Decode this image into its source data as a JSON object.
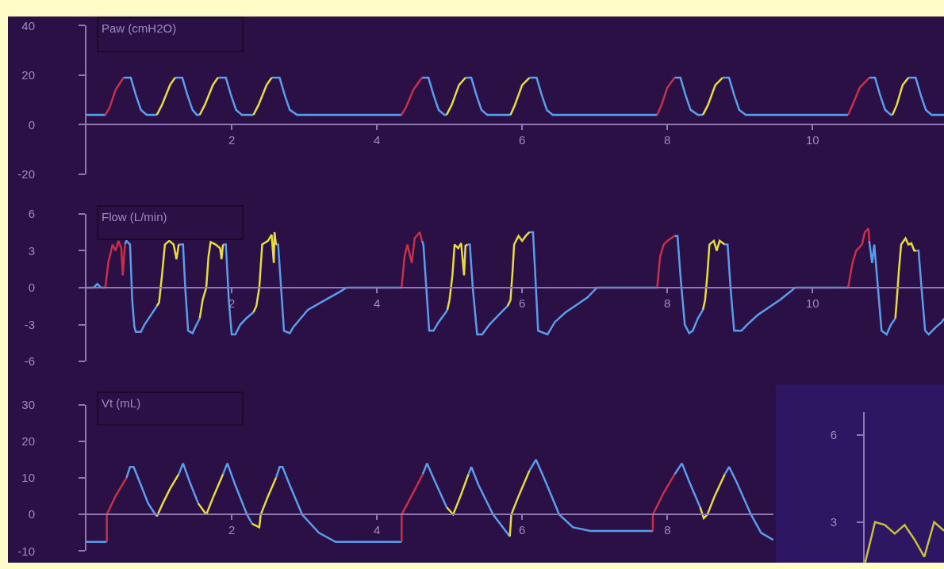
{
  "chart_data": [
    {
      "type": "line",
      "title": "Paw (cmH2O)",
      "xlim": [
        0,
        11.81
      ],
      "xticks": [
        2,
        4,
        6,
        8,
        10
      ],
      "ylim": [
        -20,
        40
      ],
      "yticks": [
        -20,
        0,
        20,
        40
      ],
      "grid": false,
      "series": [
        {
          "color": "#5b9ded",
          "x": [
            0,
            0.26,
            null,
            0.51,
            0.61,
            0.68,
            0.75,
            0.83,
            0.97,
            null,
            1.22,
            1.32,
            1.39,
            1.46,
            1.52,
            1.56,
            null,
            1.81,
            1.92,
            1.99,
            2.06,
            2.14,
            2.3,
            null,
            2.55,
            2.66,
            2.73,
            2.8,
            2.9,
            4.34,
            null,
            4.62,
            4.71,
            4.78,
            4.85,
            4.93,
            4.96,
            null,
            5.22,
            5.3,
            5.37,
            5.44,
            5.52,
            5.84,
            null,
            6.1,
            6.2,
            6.27,
            6.34,
            6.42,
            7.86,
            null,
            8.1,
            8.18,
            8.25,
            8.32,
            8.42,
            8.49,
            null,
            8.76,
            8.85,
            8.92,
            8.99,
            9.08,
            10.49,
            null,
            10.78,
            10.86,
            10.93,
            11.0,
            11.08,
            11.1,
            null,
            11.32,
            11.42,
            11.49,
            11.56,
            11.64,
            11.81
          ],
          "values": [
            4,
            4,
            null,
            19,
            19,
            12,
            6,
            4,
            4,
            null,
            19,
            19,
            12,
            6,
            4,
            4,
            null,
            19,
            19,
            12,
            6,
            4,
            4,
            null,
            19,
            19,
            12,
            6,
            4,
            4,
            null,
            19,
            19,
            12,
            6,
            4,
            4,
            null,
            19,
            19,
            12,
            6,
            4,
            4,
            null,
            19,
            19,
            12,
            6,
            4,
            4,
            null,
            19,
            19,
            12,
            6,
            4,
            4,
            null,
            19,
            19,
            12,
            6,
            4,
            4,
            null,
            19,
            19,
            12,
            6,
            4,
            4,
            null,
            19,
            19,
            12,
            6,
            4,
            4
          ]
        },
        {
          "color": "#c8304a",
          "x": [
            0.26,
            0.32,
            0.4,
            0.51,
            null,
            4.34,
            4.4,
            4.5,
            4.62,
            null,
            7.86,
            7.92,
            8.0,
            8.1,
            null,
            10.49,
            10.55,
            10.65,
            10.78
          ],
          "values": [
            4,
            7,
            14,
            19,
            null,
            4,
            7,
            14,
            19,
            null,
            4,
            8,
            15,
            19,
            null,
            4,
            8,
            15,
            19
          ]
        },
        {
          "color": "#e8dc3c",
          "x": [
            0.97,
            1.04,
            1.15,
            1.22,
            null,
            1.56,
            1.63,
            1.74,
            1.81,
            null,
            2.3,
            2.37,
            2.48,
            2.55,
            null,
            4.96,
            5.03,
            5.13,
            5.22,
            null,
            5.84,
            5.9,
            6.0,
            6.1,
            null,
            8.49,
            8.56,
            8.66,
            8.76,
            null,
            11.1,
            11.16,
            11.24,
            11.32
          ],
          "values": [
            4,
            8,
            16,
            19,
            null,
            4,
            8,
            16,
            19,
            null,
            4,
            8,
            16,
            19,
            null,
            4,
            8,
            16,
            19,
            null,
            4,
            8,
            16,
            19,
            null,
            4,
            8,
            16,
            19,
            null,
            4,
            8,
            16,
            19
          ]
        }
      ]
    },
    {
      "type": "line",
      "title": "Flow (L/min)",
      "xlim": [
        0,
        11.81
      ],
      "xticks": [
        2,
        4,
        6,
        8,
        10
      ],
      "ylim": [
        -6,
        6
      ],
      "yticks": [
        -6,
        -3,
        0,
        3,
        6
      ],
      "grid": false,
      "series": [
        {
          "color": "#5b9ded",
          "x": [
            0,
            0.1,
            0.15,
            0.2,
            0.26,
            null,
            0.53,
            0.55,
            0.6,
            0.63,
            0.66,
            0.68,
            0.75,
            0.8,
            0.88,
            0.97,
            null,
            1.27,
            1.33,
            1.36,
            1.4,
            1.46,
            1.5,
            1.56,
            null,
            1.88,
            1.92,
            1.96,
            2.0,
            2.05,
            2.12,
            2.2,
            2.3,
            null,
            2.61,
            2.64,
            2.68,
            2.72,
            2.8,
            2.85,
            2.95,
            3.05,
            3.2,
            3.35,
            3.5,
            3.58,
            4.34,
            null,
            4.62,
            4.64,
            4.68,
            4.72,
            4.78,
            4.85,
            4.95,
            4.97,
            null,
            5.25,
            5.28,
            5.32,
            5.38,
            5.45,
            5.55,
            5.68,
            5.8,
            null,
            6.1,
            6.15,
            6.19,
            6.22,
            6.35,
            6.45,
            6.6,
            6.75,
            6.9,
            7.03,
            7.86,
            null,
            8.1,
            8.14,
            8.18,
            8.24,
            8.3,
            8.35,
            8.42,
            8.49,
            null,
            8.79,
            8.83,
            8.87,
            8.92,
            9.02,
            9.1,
            9.25,
            9.4,
            9.55,
            9.7,
            9.76,
            10.49,
            null,
            10.78,
            10.82,
            10.85,
            10.9,
            10.95,
            11.02,
            11.08,
            11.14,
            null,
            11.43,
            11.46,
            11.5,
            11.55,
            11.6,
            11.7,
            11.78,
            11.81
          ],
          "values": [
            0,
            0,
            0.3,
            0,
            0,
            null,
            3.5,
            3.8,
            3.5,
            -1,
            -3.2,
            -3.6,
            -3.6,
            -3,
            -2.3,
            -1.5,
            null,
            3.5,
            3.5,
            0,
            -3.5,
            -3.7,
            -3.2,
            -2.5,
            null,
            3.5,
            3.5,
            -1,
            -3.8,
            -3.8,
            -3,
            -2.5,
            -2,
            null,
            3.5,
            3.5,
            0,
            -3.5,
            -3.7,
            -3.2,
            -2.5,
            -1.8,
            -1.3,
            -0.8,
            -0.3,
            0,
            0,
            null,
            3.8,
            3.5,
            0,
            -3.5,
            -3.5,
            -2.8,
            -2,
            -1.8,
            null,
            3.5,
            3.5,
            0,
            -3.8,
            -3.8,
            -3,
            -2.2,
            -1.5,
            null,
            4.5,
            4.5,
            0,
            -3.5,
            -3.8,
            -2.8,
            -2,
            -1.4,
            -0.8,
            0,
            0,
            null,
            4.2,
            4.2,
            1,
            -3,
            -3.7,
            -3.5,
            -2.5,
            -1.8,
            null,
            3.5,
            3.5,
            0,
            -3.5,
            -3.5,
            -3,
            -2.2,
            -1.6,
            -1,
            -0.3,
            0,
            0,
            null,
            3.8,
            2,
            3.5,
            0,
            -3.5,
            -3.8,
            -3,
            -2.5,
            null,
            3,
            3,
            0,
            -3.5,
            -3.8,
            -3.2,
            -2.8,
            -2.5
          ]
        },
        {
          "color": "#c8304a",
          "x": [
            0.26,
            0.3,
            0.36,
            0.4,
            0.44,
            0.48,
            0.5,
            0.53,
            null,
            4.34,
            4.38,
            4.42,
            4.48,
            4.52,
            4.59,
            4.62,
            null,
            7.86,
            7.9,
            7.95,
            8.0,
            8.05,
            8.1,
            null,
            10.49,
            10.55,
            10.6,
            10.68,
            10.72,
            10.77,
            10.78
          ],
          "values": [
            0,
            2,
            3.5,
            3,
            3.8,
            3.2,
            1,
            3.5,
            null,
            0,
            2.5,
            3.5,
            2,
            4,
            4.5,
            3.8,
            null,
            0,
            2.5,
            3.5,
            3.8,
            4,
            4.2,
            null,
            0,
            2,
            3,
            3.5,
            4.5,
            4.8,
            3.8
          ]
        },
        {
          "color": "#e8dc3c",
          "x": [
            0.97,
            1.0,
            1.04,
            1.08,
            1.14,
            1.2,
            1.24,
            1.27,
            null,
            1.56,
            1.6,
            1.65,
            1.68,
            1.71,
            1.78,
            1.84,
            1.86,
            1.88,
            null,
            2.3,
            2.34,
            2.38,
            2.42,
            2.5,
            2.55,
            2.58,
            2.59,
            2.61,
            null,
            4.97,
            5.0,
            5.04,
            5.07,
            5.12,
            5.16,
            5.2,
            5.22,
            5.25,
            null,
            5.8,
            5.84,
            5.87,
            5.89,
            5.95,
            6.0,
            6.05,
            6.1,
            null,
            8.49,
            8.52,
            8.55,
            8.58,
            8.64,
            8.68,
            8.72,
            8.79,
            null,
            11.14,
            11.16,
            11.19,
            11.22,
            11.28,
            11.32,
            11.36,
            11.4,
            11.43
          ],
          "values": [
            -1.5,
            -1.2,
            1,
            3.5,
            3.8,
            3.5,
            2.3,
            3.5,
            null,
            -2.5,
            -1,
            0,
            2.5,
            3.7,
            3.5,
            3.2,
            2.3,
            3.5,
            null,
            -2,
            -1.5,
            0,
            3.5,
            3.8,
            4.3,
            2,
            4.5,
            3.5,
            null,
            -1.8,
            -1,
            1,
            3.5,
            3.2,
            3.6,
            1,
            3.4,
            3.5,
            null,
            -1.5,
            -1,
            1.5,
            3.5,
            4.2,
            3.8,
            4.2,
            4.5,
            null,
            -1.8,
            -1,
            1,
            3.5,
            3.8,
            3,
            3.8,
            3.5,
            null,
            -2.5,
            -1,
            1.5,
            3.5,
            4,
            3.5,
            3.6,
            3,
            3
          ]
        }
      ]
    },
    {
      "type": "line",
      "title": "Vt (mL)",
      "xlim": [
        0,
        9.46
      ],
      "xticks": [
        2,
        4,
        6,
        8
      ],
      "ylim": [
        -10,
        30
      ],
      "yticks": [
        -10,
        0,
        10,
        20,
        30
      ],
      "grid": false,
      "series": [
        {
          "color": "#5b9ded",
          "x": [
            0,
            0.28,
            null,
            0.55,
            0.6,
            0.65,
            0.75,
            0.85,
            0.95,
            0.97,
            null,
            1.27,
            1.33,
            1.42,
            1.54,
            null,
            1.88,
            1.94,
            2.05,
            2.21,
            2.28,
            null,
            2.61,
            2.66,
            2.7,
            2.8,
            2.97,
            3.2,
            3.43,
            4.34,
            null,
            4.63,
            4.69,
            4.8,
            4.96,
            null,
            5.26,
            5.3,
            5.4,
            5.6,
            5.83,
            null,
            6.1,
            6.19,
            6.3,
            6.51,
            6.7,
            6.94,
            7.8,
            null,
            8.1,
            8.2,
            8.3,
            8.45,
            null,
            8.79,
            8.85,
            8.95,
            9.15,
            9.29,
            9.46
          ],
          "values": [
            -7.5,
            -7.5,
            null,
            10,
            13,
            13,
            8,
            3,
            0,
            -0.5,
            null,
            11,
            14,
            9,
            3,
            null,
            11,
            14,
            8,
            0,
            -2.5,
            null,
            10,
            13,
            13,
            8,
            0,
            -5,
            -7.5,
            -7.5,
            null,
            11,
            14,
            9,
            2,
            null,
            11,
            13,
            8,
            0,
            -6,
            null,
            12,
            15,
            10,
            0,
            -3.5,
            -4.5,
            -4.5,
            null,
            11,
            14,
            9,
            2,
            null,
            11,
            13,
            9,
            0,
            -5,
            -7
          ]
        },
        {
          "color": "#c8304a",
          "x": [
            0.28,
            0.28,
            0.4,
            0.55,
            null,
            4.34,
            4.34,
            4.5,
            4.63,
            null,
            7.8,
            7.8,
            7.95,
            8.1
          ],
          "values": [
            -7.5,
            0,
            5,
            10,
            null,
            -7.5,
            0,
            6,
            11,
            null,
            -4.5,
            0,
            6,
            11
          ]
        },
        {
          "color": "#e8dc3c",
          "x": [
            0.97,
            1.05,
            1.15,
            1.27,
            null,
            1.54,
            1.65,
            1.75,
            1.88,
            null,
            2.28,
            2.38,
            2.4,
            2.5,
            2.61,
            null,
            4.96,
            5.05,
            5.15,
            5.26,
            null,
            5.83,
            5.85,
            5.95,
            6.1,
            null,
            8.45,
            8.5,
            8.55,
            8.65,
            8.79
          ],
          "values": [
            -0.5,
            3,
            7,
            11,
            null,
            3,
            0,
            5,
            11,
            null,
            -2.5,
            -3.5,
            0,
            5,
            10,
            null,
            2,
            0,
            5,
            11,
            null,
            -6,
            0,
            5,
            12,
            null,
            2,
            -1,
            0,
            5,
            11
          ]
        }
      ]
    },
    {
      "type": "line",
      "categories": [
        null,
        null,
        null,
        null,
        null,
        null,
        null,
        null,
        null
      ],
      "ylim": [
        1.6,
        6.8
      ],
      "yticks": [
        3,
        6
      ],
      "tick_labels": "y",
      "grid": false,
      "series": [
        {
          "color": "#c8bf3c",
          "values": [
            1.6,
            3.0,
            2.9,
            2.6,
            2.9,
            2.4,
            1.8,
            3.0,
            2.7
          ]
        }
      ]
    }
  ]
}
